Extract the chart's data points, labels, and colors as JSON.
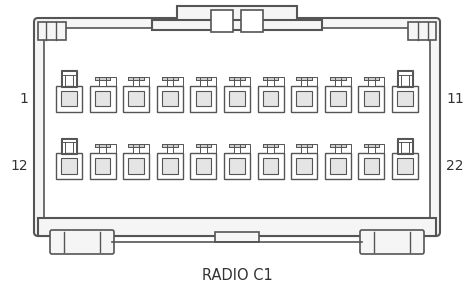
{
  "title": "RADIO C1",
  "label_top_left": "1",
  "label_top_right": "11",
  "label_bot_left": "12",
  "label_bot_right": "22",
  "bg_color": "#ffffff",
  "line_color": "#555555",
  "body_fill": "#f5f5f5",
  "inner_fill": "#ffffff",
  "pin_fill": "#ffffff",
  "n_pins": 11,
  "figsize": [
    4.74,
    2.93
  ],
  "dpi": 100
}
